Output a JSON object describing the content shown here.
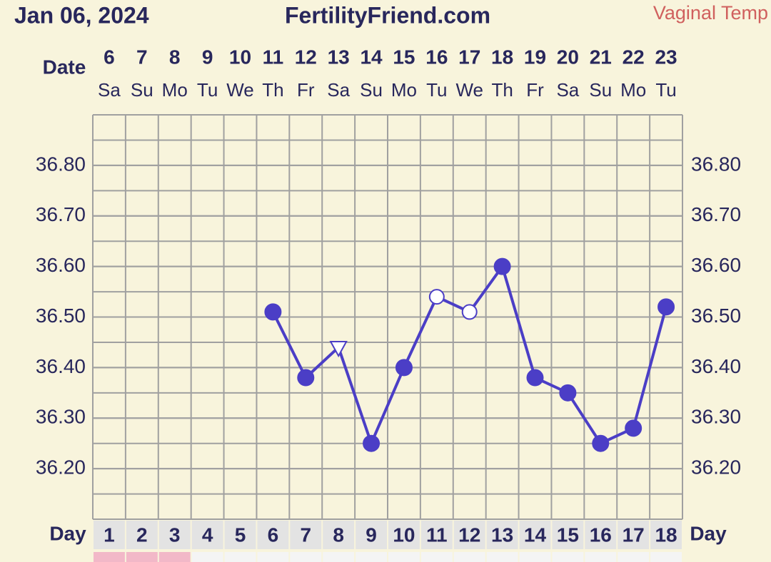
{
  "header": {
    "date": "Jan 06, 2024",
    "site": "FertilityFriend.com",
    "mode": "Vaginal Temp"
  },
  "chart_data": {
    "type": "line",
    "date_label": "Date",
    "day_label": "Day",
    "categories": [
      "6",
      "7",
      "8",
      "9",
      "10",
      "11",
      "12",
      "13",
      "14",
      "15",
      "16",
      "17",
      "18",
      "19",
      "20",
      "21",
      "22",
      "23"
    ],
    "weekdays": [
      "Sa",
      "Su",
      "Mo",
      "Tu",
      "We",
      "Th",
      "Fr",
      "Sa",
      "Su",
      "Mo",
      "Tu",
      "We",
      "Th",
      "Fr",
      "Sa",
      "Su",
      "Mo",
      "Tu"
    ],
    "cycle_days": [
      "1",
      "2",
      "3",
      "4",
      "5",
      "6",
      "7",
      "8",
      "9",
      "10",
      "11",
      "12",
      "13",
      "14",
      "15",
      "16",
      "17",
      "18"
    ],
    "series": [
      {
        "color": "#4b3ec6",
        "values": [
          null,
          null,
          null,
          null,
          null,
          36.51,
          36.38,
          36.44,
          36.25,
          36.4,
          36.54,
          36.51,
          36.6,
          36.38,
          36.35,
          36.25,
          36.28,
          36.52
        ],
        "marker_styles": [
          null,
          null,
          null,
          null,
          null,
          "filled",
          "filled",
          "open-triangle",
          "filled",
          "filled",
          "open",
          "open",
          "filled",
          "filled",
          "filled",
          "filled",
          "filled",
          "filled"
        ]
      }
    ],
    "ylim": [
      36.1,
      36.9
    ],
    "yticks": [
      {
        "value": 36.2,
        "label": "36.20"
      },
      {
        "value": 36.3,
        "label": "36.30"
      },
      {
        "value": 36.4,
        "label": "36.40"
      },
      {
        "value": 36.5,
        "label": "36.50"
      },
      {
        "value": 36.6,
        "label": "36.60"
      },
      {
        "value": 36.7,
        "label": "36.70"
      },
      {
        "value": 36.8,
        "label": "36.80"
      }
    ],
    "grid": true
  }
}
